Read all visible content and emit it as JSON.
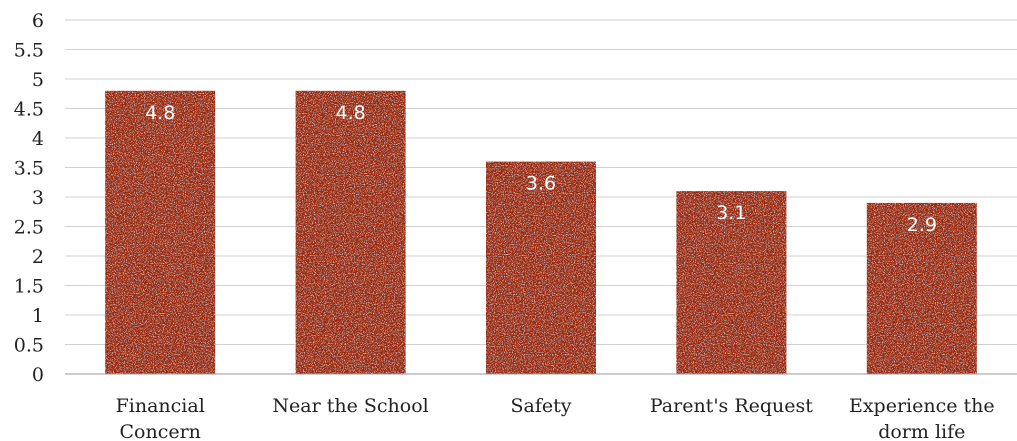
{
  "chart_data": {
    "type": "bar",
    "categories": [
      "Financial Concern",
      "Near the School",
      "Safety",
      "Parent's Request",
      "Experience the dorm life"
    ],
    "category_lines": [
      [
        "Financial",
        "Concern"
      ],
      [
        "Near the School"
      ],
      [
        "Safety"
      ],
      [
        "Parent's Request"
      ],
      [
        "Experience the",
        "dorm life"
      ]
    ],
    "values": [
      4.8,
      4.8,
      3.6,
      3.1,
      2.9
    ],
    "data_labels": [
      "4.8",
      "4.8",
      "3.6",
      "3.1",
      "2.9"
    ],
    "y_ticks": [
      "0",
      "0.5",
      "1",
      "1.5",
      "2",
      "2.5",
      "3",
      "3.5",
      "4",
      "4.5",
      "5",
      "5.5",
      "6"
    ],
    "ylim": [
      0,
      6
    ],
    "grid": true,
    "legend": "none",
    "bar_color": "#9B2B10"
  }
}
